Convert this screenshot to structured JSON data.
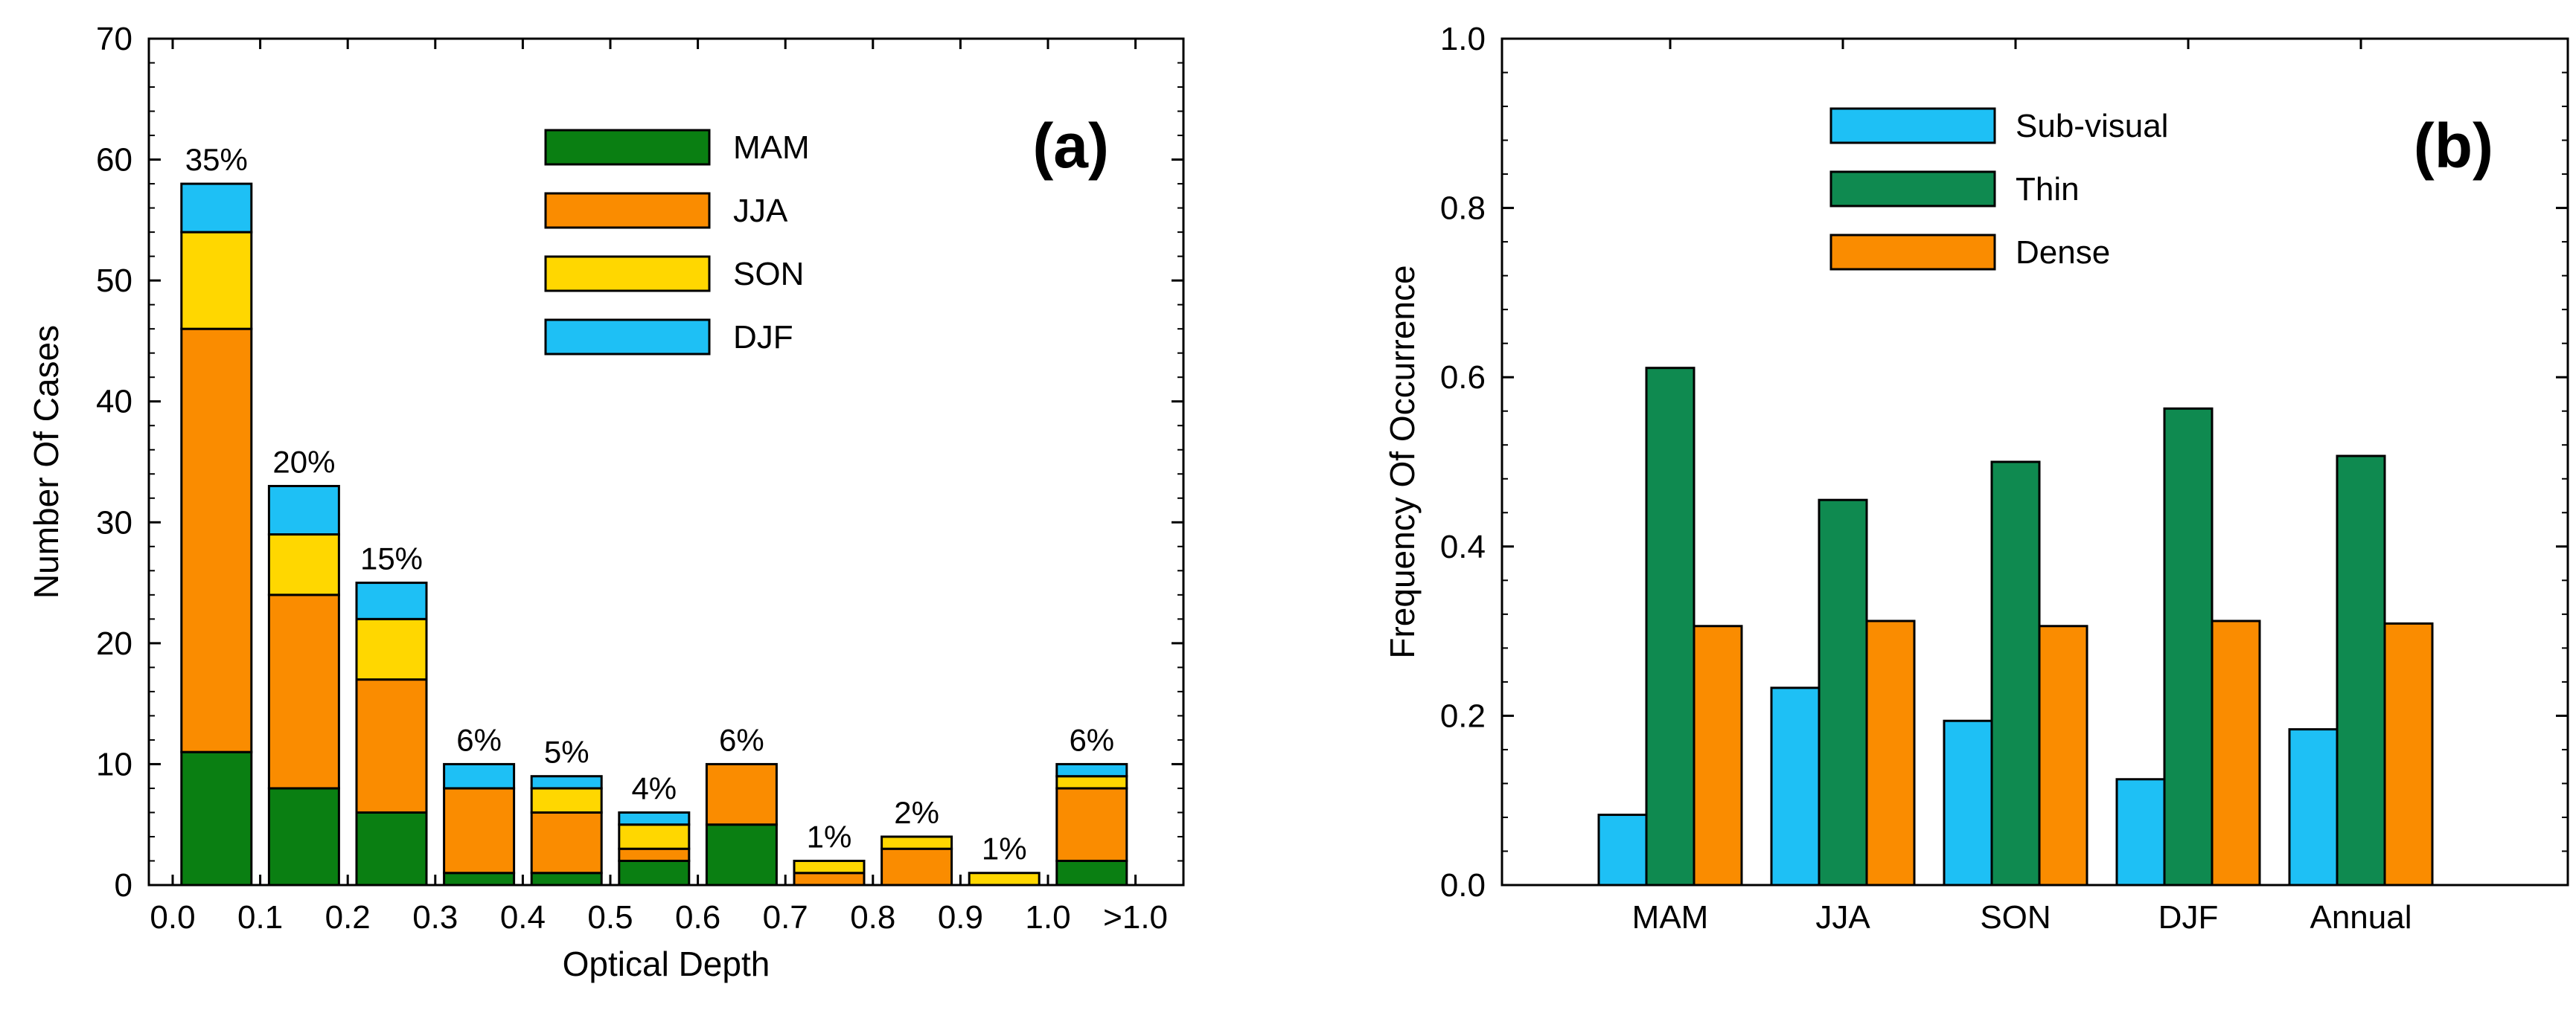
{
  "chart_data": [
    {
      "panel_label": "(a)",
      "type": "bar",
      "stacked": true,
      "xlabel": "Optical Depth",
      "ylabel": "Number Of Cases",
      "ylim": [
        0,
        70
      ],
      "yticks": [
        "0",
        "10",
        "20",
        "30",
        "40",
        "50",
        "60",
        "70"
      ],
      "xtick_labels": [
        "0.0",
        "0.1",
        "0.2",
        "0.3",
        "0.4",
        "0.5",
        "0.6",
        "0.7",
        "0.8",
        "0.9",
        "1.0",
        ">1.0"
      ],
      "bins": [
        "0.0-0.1",
        "0.1-0.2",
        "0.2-0.3",
        "0.3-0.4",
        "0.4-0.5",
        "0.5-0.6",
        "0.6-0.7",
        "0.7-0.8",
        "0.8-0.9",
        "0.9-1.0",
        ">1.0"
      ],
      "series": [
        {
          "name": "MAM",
          "color": "#0a7f12",
          "values": [
            11,
            8,
            6,
            1,
            1,
            2,
            5,
            0,
            0,
            0,
            2
          ]
        },
        {
          "name": "JJA",
          "color": "#fa8c00",
          "values": [
            35,
            16,
            11,
            7,
            5,
            1,
            5,
            1,
            3,
            0,
            6
          ]
        },
        {
          "name": "SON",
          "color": "#ffd700",
          "values": [
            8,
            5,
            5,
            0,
            2,
            2,
            0,
            1,
            1,
            1,
            1
          ]
        },
        {
          "name": "DJF",
          "color": "#1ec0f5",
          "values": [
            4,
            4,
            3,
            2,
            1,
            1,
            0,
            0,
            0,
            0,
            1
          ]
        }
      ],
      "percent_labels": [
        "35%",
        "20%",
        "15%",
        "6%",
        "5%",
        "4%",
        "6%",
        "1%",
        "2%",
        "1%",
        "6%"
      ],
      "legend_position": "top-right"
    },
    {
      "panel_label": "(b)",
      "type": "bar",
      "stacked": false,
      "xlabel": "",
      "ylabel": "Frequency Of Occurrence",
      "ylim": [
        0,
        1.0
      ],
      "yticks": [
        "0.0",
        "0.2",
        "0.4",
        "0.6",
        "0.8",
        "1.0"
      ],
      "categories": [
        "MAM",
        "JJA",
        "SON",
        "DJF",
        "Annual"
      ],
      "series": [
        {
          "name": "Sub-visual",
          "color": "#1ec0f5",
          "values": [
            0.083,
            0.233,
            0.194,
            0.125,
            0.184
          ]
        },
        {
          "name": "Thin",
          "color": "#0f8a50",
          "values": [
            0.611,
            0.455,
            0.5,
            0.563,
            0.507
          ]
        },
        {
          "name": "Dense",
          "color": "#fa8c00",
          "values": [
            0.306,
            0.312,
            0.306,
            0.312,
            0.309
          ]
        }
      ],
      "legend_position": "top-center"
    }
  ]
}
